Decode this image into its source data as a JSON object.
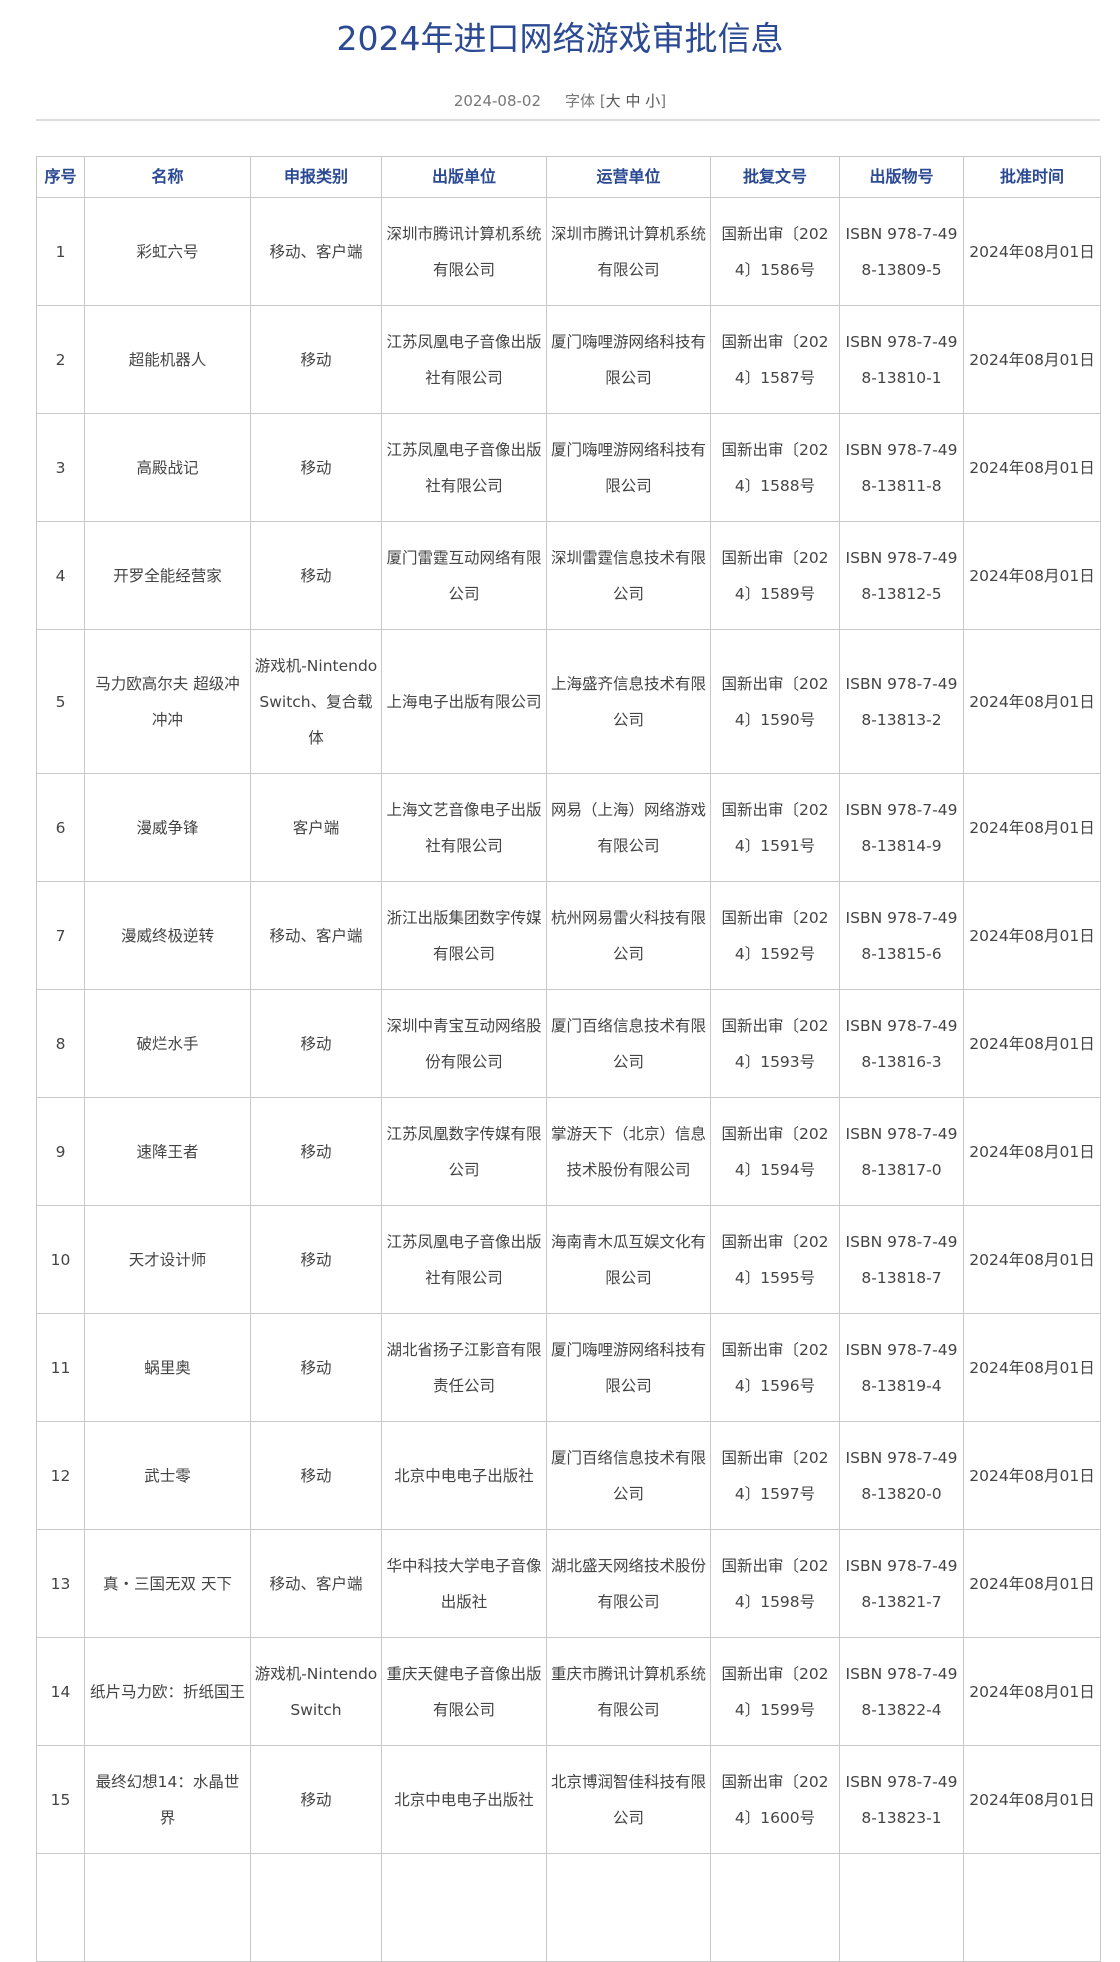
{
  "title": "2024年进口网络游戏审批信息",
  "date": "2024-08-02",
  "font_size_label": "字体",
  "font_sizes": [
    "大",
    "中",
    "小"
  ],
  "colors": {
    "accent": "#2b4a93",
    "border": "#c8c8c8",
    "text": "#444444"
  },
  "table": {
    "headers": [
      "序号",
      "名称",
      "申报类别",
      "出版单位",
      "运营单位",
      "批复文号",
      "出版物号",
      "批准时间"
    ],
    "rows": [
      [
        "1",
        "彩虹六号",
        "移动、客户端",
        "深圳市腾讯计算机系统有限公司",
        "深圳市腾讯计算机系统有限公司",
        "国新出审〔2024〕1586号",
        "ISBN 978-7-498-13809-5",
        "2024年08月01日"
      ],
      [
        "2",
        "超能机器人",
        "移动",
        "江苏凤凰电子音像出版社有限公司",
        "厦门嗨哩游网络科技有限公司",
        "国新出审〔2024〕1587号",
        "ISBN 978-7-498-13810-1",
        "2024年08月01日"
      ],
      [
        "3",
        "高殿战记",
        "移动",
        "江苏凤凰电子音像出版社有限公司",
        "厦门嗨哩游网络科技有限公司",
        "国新出审〔2024〕1588号",
        "ISBN 978-7-498-13811-8",
        "2024年08月01日"
      ],
      [
        "4",
        "开罗全能经营家",
        "移动",
        "厦门雷霆互动网络有限公司",
        "深圳雷霆信息技术有限公司",
        "国新出审〔2024〕1589号",
        "ISBN 978-7-498-13812-5",
        "2024年08月01日"
      ],
      [
        "5",
        "马力欧高尔夫 超级冲冲冲",
        "游戏机-Nintendo Switch、复合载体",
        "上海电子出版有限公司",
        "上海盛齐信息技术有限公司",
        "国新出审〔2024〕1590号",
        "ISBN 978-7-498-13813-2",
        "2024年08月01日"
      ],
      [
        "6",
        "漫威争锋",
        "客户端",
        "上海文艺音像电子出版社有限公司",
        "网易（上海）网络游戏有限公司",
        "国新出审〔2024〕1591号",
        "ISBN 978-7-498-13814-9",
        "2024年08月01日"
      ],
      [
        "7",
        "漫威终极逆转",
        "移动、客户端",
        "浙江出版集团数字传媒有限公司",
        "杭州网易雷火科技有限公司",
        "国新出审〔2024〕1592号",
        "ISBN 978-7-498-13815-6",
        "2024年08月01日"
      ],
      [
        "8",
        "破烂水手",
        "移动",
        "深圳中青宝互动网络股份有限公司",
        "厦门百络信息技术有限公司",
        "国新出审〔2024〕1593号",
        "ISBN 978-7-498-13816-3",
        "2024年08月01日"
      ],
      [
        "9",
        "速降王者",
        "移动",
        "江苏凤凰数字传媒有限公司",
        "掌游天下（北京）信息技术股份有限公司",
        "国新出审〔2024〕1594号",
        "ISBN 978-7-498-13817-0",
        "2024年08月01日"
      ],
      [
        "10",
        "天才设计师",
        "移动",
        "江苏凤凰电子音像出版社有限公司",
        "海南青木瓜互娱文化有限公司",
        "国新出审〔2024〕1595号",
        "ISBN 978-7-498-13818-7",
        "2024年08月01日"
      ],
      [
        "11",
        "蜗里奥",
        "移动",
        "湖北省扬子江影音有限责任公司",
        "厦门嗨哩游网络科技有限公司",
        "国新出审〔2024〕1596号",
        "ISBN 978-7-498-13819-4",
        "2024年08月01日"
      ],
      [
        "12",
        "武士零",
        "移动",
        "北京中电电子出版社",
        "厦门百络信息技术有限公司",
        "国新出审〔2024〕1597号",
        "ISBN 978-7-498-13820-0",
        "2024年08月01日"
      ],
      [
        "13",
        "真・三国无双 天下",
        "移动、客户端",
        "华中科技大学电子音像出版社",
        "湖北盛天网络技术股份有限公司",
        "国新出审〔2024〕1598号",
        "ISBN 978-7-498-13821-7",
        "2024年08月01日"
      ],
      [
        "14",
        "纸片马力欧：折纸国王",
        "游戏机-Nintendo Switch",
        "重庆天健电子音像出版有限公司",
        "重庆市腾讯计算机系统有限公司",
        "国新出审〔2024〕1599号",
        "ISBN 978-7-498-13822-4",
        "2024年08月01日"
      ],
      [
        "15",
        "最终幻想14：水晶世界",
        "移动",
        "北京中电电子出版社",
        "北京博润智佳科技有限公司",
        "国新出审〔2024〕1600号",
        "ISBN 978-7-498-13823-1",
        "2024年08月01日"
      ]
    ]
  }
}
